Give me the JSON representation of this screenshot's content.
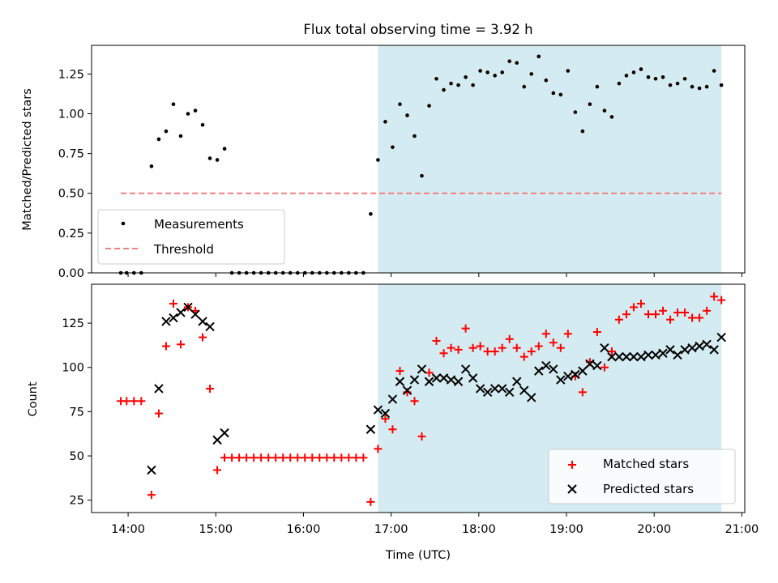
{
  "title": "Flux total observing time = 3.92 h",
  "colors": {
    "shade": "#d4ebf1",
    "threshold": "#f07f80",
    "matched": "#ff0000",
    "predicted": "#000000"
  },
  "chart_data": [
    {
      "type": "scatter",
      "ylabel": "Matched/Predicted stars",
      "ylim": [
        0,
        1.43
      ],
      "xlim": [
        "13:35",
        "21:02"
      ],
      "yticks": [
        "0.00",
        "0.25",
        "0.50",
        "0.75",
        "1.00",
        "1.25"
      ],
      "shaded_region": [
        "16:51",
        "20:46"
      ],
      "legend_position": "lower-left",
      "legend": [
        "Measurements",
        "Threshold"
      ],
      "threshold": {
        "name": "Threshold",
        "x": [
          "13:55",
          "20:46"
        ],
        "y": 0.5
      },
      "series": [
        {
          "name": "Measurements",
          "x": [
            "13:55",
            "13:59",
            "14:04",
            "14:09",
            "14:16",
            "14:21",
            "14:26",
            "14:31",
            "14:36",
            "14:41",
            "14:46",
            "14:51",
            "14:56",
            "15:01",
            "15:06",
            "15:11",
            "15:16",
            "15:21",
            "15:26",
            "15:31",
            "15:36",
            "15:41",
            "15:46",
            "15:51",
            "15:56",
            "16:01",
            "16:06",
            "16:11",
            "16:16",
            "16:21",
            "16:26",
            "16:31",
            "16:36",
            "16:41",
            "16:46",
            "16:51",
            "16:56",
            "17:01",
            "17:06",
            "17:11",
            "17:16",
            "17:21",
            "17:26",
            "17:31",
            "17:36",
            "17:41",
            "17:46",
            "17:51",
            "17:56",
            "18:01",
            "18:06",
            "18:11",
            "18:16",
            "18:21",
            "18:26",
            "18:31",
            "18:36",
            "18:41",
            "18:46",
            "18:51",
            "18:56",
            "19:01",
            "19:06",
            "19:11",
            "19:16",
            "19:21",
            "19:26",
            "19:31",
            "19:36",
            "19:41",
            "19:46",
            "19:51",
            "19:56",
            "20:01",
            "20:06",
            "20:11",
            "20:16",
            "20:21",
            "20:26",
            "20:31",
            "20:36",
            "20:41",
            "20:46"
          ],
          "y": [
            0,
            0,
            0,
            0,
            0.67,
            0.84,
            0.89,
            1.06,
            0.86,
            1.0,
            1.02,
            0.93,
            0.72,
            0.71,
            0.78,
            0,
            0,
            0,
            0,
            0,
            0,
            0,
            0,
            0,
            0,
            0,
            0,
            0,
            0,
            0,
            0,
            0,
            0,
            0,
            0.37,
            0.71,
            0.95,
            0.79,
            1.06,
            0.99,
            0.86,
            0.61,
            1.05,
            1.22,
            1.15,
            1.19,
            1.18,
            1.23,
            1.18,
            1.27,
            1.26,
            1.24,
            1.26,
            1.33,
            1.32,
            1.17,
            1.25,
            1.36,
            1.21,
            1.13,
            1.12,
            1.27,
            1.01,
            0.89,
            1.06,
            1.17,
            1.02,
            0.98,
            1.19,
            1.24,
            1.26,
            1.28,
            1.23,
            1.22,
            1.23,
            1.18,
            1.19,
            1.22,
            1.17,
            1.16,
            1.17,
            1.27,
            1.18
          ]
        }
      ]
    },
    {
      "type": "scatter",
      "xlabel": "Time (UTC)",
      "ylabel": "Count",
      "ylim": [
        18,
        147
      ],
      "xlim": [
        "13:35",
        "21:02"
      ],
      "xticks": [
        "14:00",
        "15:00",
        "16:00",
        "17:00",
        "18:00",
        "19:00",
        "20:00",
        "21:00"
      ],
      "yticks": [
        "25",
        "50",
        "75",
        "100",
        "125"
      ],
      "shaded_region": [
        "16:51",
        "20:46"
      ],
      "legend_position": "lower-right",
      "legend": [
        "Matched stars",
        "Predicted stars"
      ],
      "series": [
        {
          "name": "Matched stars",
          "marker": "+",
          "x": [
            "13:55",
            "13:59",
            "14:04",
            "14:09",
            "14:16",
            "14:21",
            "14:26",
            "14:31",
            "14:36",
            "14:41",
            "14:46",
            "14:51",
            "14:56",
            "15:01",
            "15:06",
            "15:11",
            "15:16",
            "15:21",
            "15:26",
            "15:31",
            "15:36",
            "15:41",
            "15:46",
            "15:51",
            "15:56",
            "16:01",
            "16:06",
            "16:11",
            "16:16",
            "16:21",
            "16:26",
            "16:31",
            "16:36",
            "16:41",
            "16:46",
            "16:51",
            "16:56",
            "17:01",
            "17:06",
            "17:11",
            "17:16",
            "17:21",
            "17:26",
            "17:31",
            "17:36",
            "17:41",
            "17:46",
            "17:51",
            "17:56",
            "18:01",
            "18:06",
            "18:11",
            "18:16",
            "18:21",
            "18:26",
            "18:31",
            "18:36",
            "18:41",
            "18:46",
            "18:51",
            "18:56",
            "19:01",
            "19:06",
            "19:11",
            "19:16",
            "19:21",
            "19:26",
            "19:31",
            "19:36",
            "19:41",
            "19:46",
            "19:51",
            "19:56",
            "20:01",
            "20:06",
            "20:11",
            "20:16",
            "20:21",
            "20:26",
            "20:31",
            "20:36",
            "20:41",
            "20:46"
          ],
          "y": [
            81,
            81,
            81,
            81,
            28,
            74,
            112,
            136,
            113,
            134,
            132,
            117,
            88,
            42,
            49,
            49,
            49,
            49,
            49,
            49,
            49,
            49,
            49,
            49,
            49,
            49,
            49,
            49,
            49,
            49,
            49,
            49,
            49,
            49,
            24,
            54,
            71,
            65,
            98,
            86,
            81,
            61,
            97,
            115,
            108,
            111,
            110,
            122,
            111,
            112,
            109,
            109,
            111,
            116,
            111,
            106,
            109,
            112,
            119,
            114,
            111,
            119,
            95,
            86,
            103,
            120,
            100,
            109,
            127,
            130,
            134,
            136,
            130,
            130,
            132,
            127,
            131,
            131,
            128,
            128,
            132,
            140,
            138
          ]
        },
        {
          "name": "Predicted stars",
          "marker": "x",
          "x": [
            "14:16",
            "14:21",
            "14:26",
            "14:31",
            "14:36",
            "14:41",
            "14:46",
            "14:51",
            "14:56",
            "15:01",
            "15:06",
            "16:46",
            "16:51",
            "16:56",
            "17:01",
            "17:06",
            "17:11",
            "17:16",
            "17:21",
            "17:26",
            "17:31",
            "17:36",
            "17:41",
            "17:46",
            "17:51",
            "17:56",
            "18:01",
            "18:06",
            "18:11",
            "18:16",
            "18:21",
            "18:26",
            "18:31",
            "18:36",
            "18:41",
            "18:46",
            "18:51",
            "18:56",
            "19:01",
            "19:06",
            "19:11",
            "19:16",
            "19:21",
            "19:26",
            "19:31",
            "19:36",
            "19:41",
            "19:46",
            "19:51",
            "19:56",
            "20:01",
            "20:06",
            "20:11",
            "20:16",
            "20:21",
            "20:26",
            "20:31",
            "20:36",
            "20:41",
            "20:46"
          ],
          "y": [
            42,
            88,
            126,
            128,
            131,
            134,
            130,
            126,
            123,
            59,
            63,
            65,
            76,
            74,
            82,
            92,
            87,
            93,
            99,
            92,
            94,
            94,
            93,
            92,
            99,
            94,
            88,
            86,
            88,
            88,
            86,
            92,
            87,
            83,
            98,
            101,
            99,
            93,
            95,
            96,
            98,
            102,
            101,
            111,
            106,
            106,
            106,
            106,
            106,
            107,
            107,
            108,
            110,
            107,
            110,
            111,
            112,
            113,
            110,
            117
          ]
        }
      ]
    }
  ]
}
